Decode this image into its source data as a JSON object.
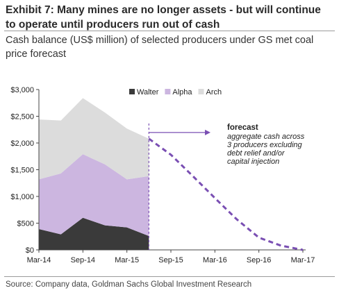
{
  "header": {
    "title": "Exhibit 7: Many mines are no longer assets - but will continue to operate until producers run out of cash",
    "subtitle": "Cash balance (US$ million) of selected producers under GS met coal price forecast"
  },
  "footer": {
    "source": "Source: Company data, Goldman Sachs Global Investment Research"
  },
  "chart_data": {
    "type": "area",
    "stacked": true,
    "x_tick_labels": [
      "Mar-14",
      "Sep-14",
      "Mar-15",
      "Sep-15",
      "Mar-16",
      "Sep-16",
      "Mar-17"
    ],
    "y_tick_labels": [
      "$0",
      "$500",
      "$1,000",
      "$1,500",
      "$2,000",
      "$2,500",
      "$3,000"
    ],
    "ylim": [
      0,
      3000
    ],
    "grid": false,
    "legend_position": "top",
    "x": [
      "Mar-14",
      "Jun-14",
      "Sep-14",
      "Dec-14",
      "Mar-15",
      "Jun-15"
    ],
    "series": [
      {
        "name": "Walter",
        "color": "#3a3a3a",
        "values": [
          390,
          290,
          600,
          460,
          420,
          260
        ]
      },
      {
        "name": "Alpha",
        "color": "#ccb6e0",
        "values": [
          930,
          1140,
          1190,
          1140,
          900,
          1120
        ]
      },
      {
        "name": "Arch",
        "color": "#dcdcdc",
        "values": [
          1120,
          990,
          1050,
          970,
          950,
          700
        ]
      }
    ],
    "forecast": {
      "label": "forecast",
      "note_lines": [
        "aggregate  cash across",
        "3 producers  excluding",
        "debt relief and/or",
        "capital injection"
      ],
      "color": "#7a4fb3",
      "x": [
        "Jun-15",
        "Sep-15",
        "Dec-15",
        "Mar-16",
        "Jun-16",
        "Sep-16",
        "Dec-16",
        "Mar-17"
      ],
      "values": [
        2080,
        1780,
        1380,
        970,
        570,
        230,
        80,
        0
      ]
    }
  }
}
